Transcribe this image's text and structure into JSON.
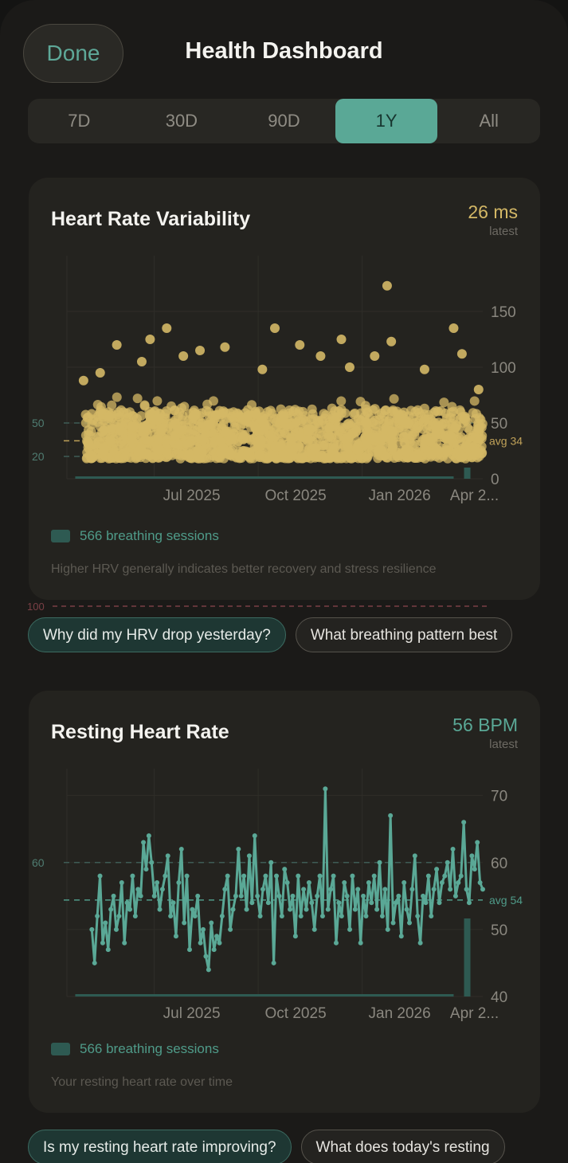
{
  "header": {
    "done_label": "Done",
    "title": "Health Dashboard"
  },
  "range_tabs": [
    {
      "label": "7D",
      "active": false
    },
    {
      "label": "30D",
      "active": false
    },
    {
      "label": "90D",
      "active": false
    },
    {
      "label": "1Y",
      "active": true
    },
    {
      "label": "All",
      "active": false
    }
  ],
  "colors": {
    "accent": "#5aa896",
    "hrv": "#d4b866",
    "rhr": "#5aa896",
    "background": "#1b1a18",
    "card": "#24231f"
  },
  "hrv_card": {
    "title": "Heart Rate Variability",
    "latest_value": "26 ms",
    "latest_label": "latest",
    "legend": "566 breathing sessions",
    "description": "Higher HRV generally indicates better recovery and stress resilience",
    "stray_reference_label": "100"
  },
  "hrv_chips": [
    "Why did my HRV drop yesterday?",
    "What breathing pattern best"
  ],
  "rhr_card": {
    "title": "Resting Heart Rate",
    "latest_value": "56 BPM",
    "latest_label": "latest",
    "legend": "566 breathing sessions",
    "description": "Your resting heart rate over time"
  },
  "rhr_chips": [
    "Is my resting heart rate improving?",
    "What does today's resting"
  ],
  "chart_data": [
    {
      "type": "scatter",
      "x_ticks": [
        "Jul 2025",
        "Oct 2025",
        "Jan 2026",
        "Apr 2..."
      ],
      "y_ticks": [
        "0",
        "50",
        "100",
        "150"
      ],
      "ylim": [
        0,
        200
      ],
      "reference_lines": [
        {
          "value": 50,
          "left_label": "50",
          "right_label": "50"
        },
        {
          "value": 20,
          "left_label": "20"
        },
        {
          "value": 34,
          "right_label": "avg 34"
        }
      ],
      "outliers": [
        [
          0.77,
          173
        ],
        [
          0.24,
          135
        ],
        [
          0.5,
          135
        ],
        [
          0.93,
          135
        ],
        [
          0.2,
          125
        ],
        [
          0.12,
          120
        ],
        [
          0.66,
          125
        ],
        [
          0.78,
          123
        ],
        [
          0.56,
          120
        ],
        [
          0.95,
          112
        ],
        [
          0.38,
          118
        ],
        [
          0.32,
          115
        ],
        [
          0.28,
          110
        ],
        [
          0.61,
          110
        ],
        [
          0.74,
          110
        ],
        [
          0.18,
          105
        ],
        [
          0.86,
          98
        ],
        [
          0.04,
          88
        ],
        [
          0.08,
          95
        ],
        [
          0.47,
          98
        ],
        [
          0.68,
          100
        ],
        [
          0.99,
          80
        ]
      ],
      "bulk_band": [
        18,
        70
      ],
      "grid": true,
      "legend": "bottom-left"
    },
    {
      "type": "line",
      "x_ticks": [
        "Jul 2025",
        "Oct 2025",
        "Jan 2026",
        "Apr 2..."
      ],
      "y_ticks": [
        "40",
        "50",
        "60",
        "70"
      ],
      "ylim": [
        40,
        74
      ],
      "reference_lines": [
        {
          "value": 60,
          "left_label": "60",
          "right_label": "60"
        },
        {
          "value": 54.4,
          "right_label": "avg 54"
        }
      ],
      "values": [
        50,
        45,
        52,
        58,
        48,
        51,
        47,
        53,
        55,
        50,
        52,
        57,
        48,
        54,
        53,
        58,
        52,
        56,
        55,
        63,
        59,
        64,
        60,
        55,
        57,
        53,
        56,
        58,
        61,
        52,
        54,
        49,
        57,
        62,
        51,
        58,
        47,
        53,
        52,
        55,
        48,
        50,
        46,
        44,
        51,
        47,
        49,
        48,
        52,
        56,
        58,
        50,
        53,
        55,
        62,
        55,
        58,
        53,
        61,
        54,
        64,
        55,
        52,
        56,
        58,
        54,
        60,
        45,
        58,
        55,
        52,
        59,
        57,
        53,
        55,
        49,
        58,
        52,
        56,
        53,
        57,
        54,
        50,
        55,
        58,
        52,
        71,
        53,
        56,
        58,
        48,
        54,
        52,
        57,
        55,
        50,
        58,
        53,
        56,
        48,
        55,
        52,
        57,
        54,
        58,
        53,
        60,
        52,
        56,
        50,
        67,
        51,
        54,
        55,
        49,
        57,
        53,
        51,
        56,
        61,
        52,
        48,
        55,
        54,
        58,
        52,
        56,
        59,
        54,
        57,
        58,
        60,
        56,
        62,
        55,
        57,
        58,
        66,
        56,
        54,
        61,
        59,
        63,
        57,
        56
      ],
      "grid": true,
      "legend": "bottom-left"
    }
  ]
}
